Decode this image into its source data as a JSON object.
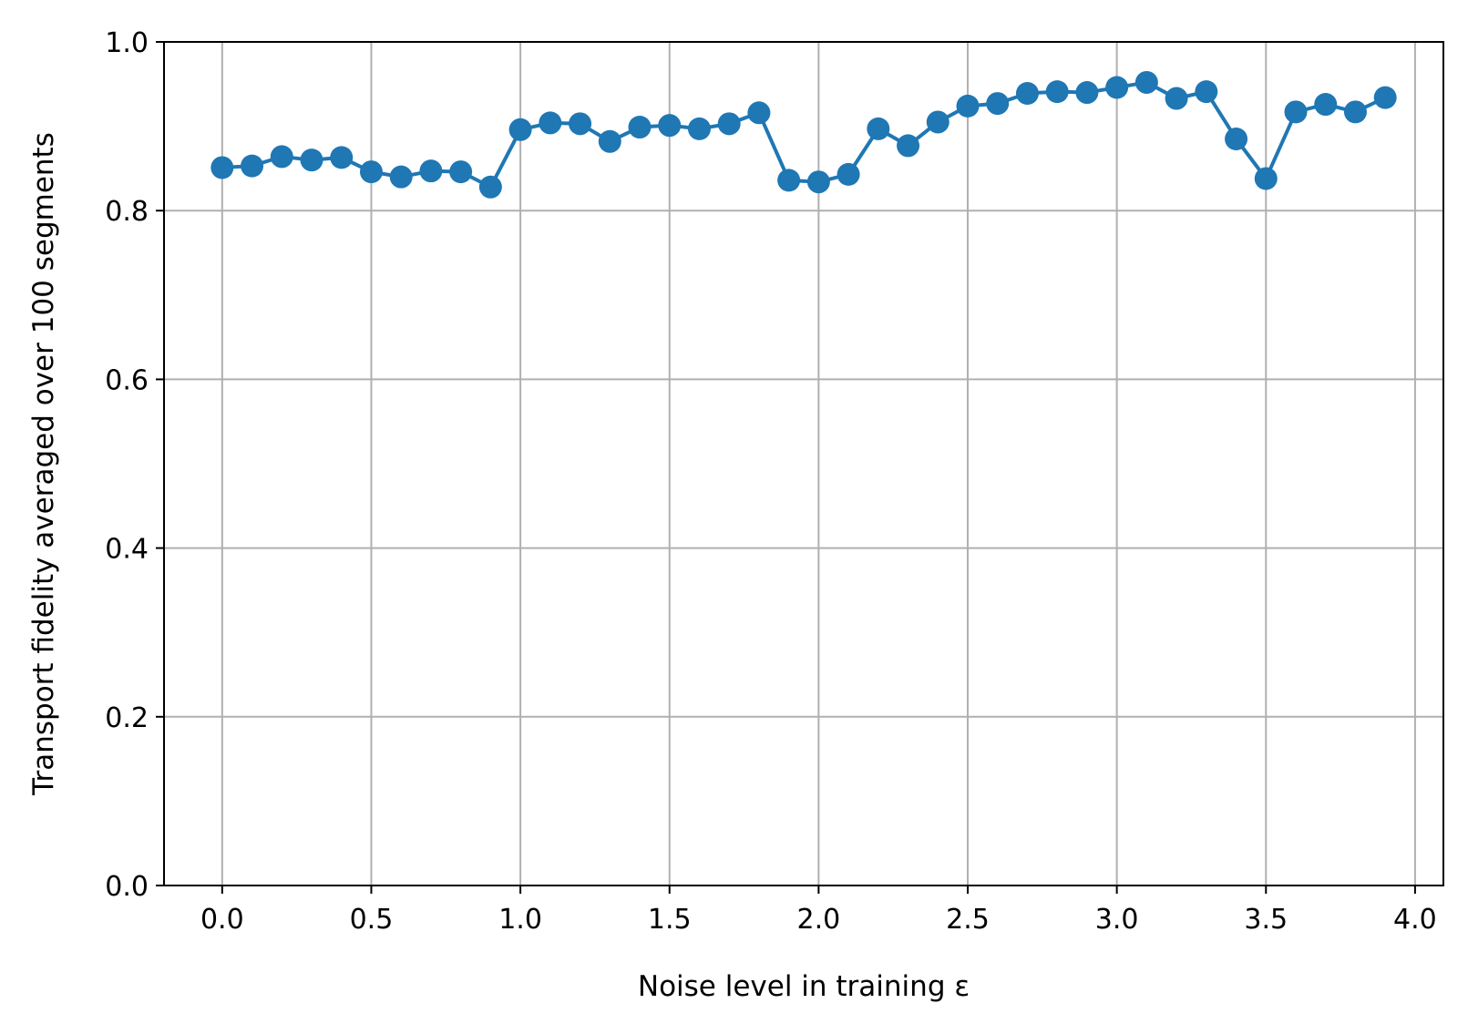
{
  "chart_data": {
    "type": "line",
    "title": "",
    "xlabel": "Noise level in training ε",
    "ylabel": "Transport fidelity averaged over 100 segments",
    "xlim": [
      -0.195,
      4.095
    ],
    "ylim": [
      0.0,
      1.0
    ],
    "x_ticks": [
      "0.0",
      "0.5",
      "1.0",
      "1.5",
      "2.0",
      "2.5",
      "3.0",
      "3.5",
      "4.0"
    ],
    "y_ticks": [
      "0.0",
      "0.2",
      "0.4",
      "0.6",
      "0.8",
      "1.0"
    ],
    "grid": true,
    "legend": "none",
    "series": [
      {
        "color": "#1f77b4",
        "marker": "circle",
        "x": [
          0.0,
          0.1,
          0.2,
          0.3,
          0.4,
          0.5,
          0.6,
          0.7,
          0.8,
          0.9,
          1.0,
          1.1,
          1.2,
          1.3,
          1.4,
          1.5,
          1.6,
          1.7,
          1.8,
          1.9,
          2.0,
          2.1,
          2.2,
          2.3,
          2.4,
          2.5,
          2.6,
          2.7,
          2.8,
          2.9,
          3.0,
          3.1,
          3.2,
          3.3,
          3.4,
          3.5,
          3.6,
          3.7,
          3.8,
          3.9
        ],
        "y": [
          0.851,
          0.853,
          0.864,
          0.86,
          0.863,
          0.846,
          0.84,
          0.847,
          0.846,
          0.828,
          0.896,
          0.904,
          0.903,
          0.882,
          0.899,
          0.901,
          0.897,
          0.903,
          0.916,
          0.836,
          0.834,
          0.843,
          0.897,
          0.877,
          0.905,
          0.924,
          0.927,
          0.939,
          0.941,
          0.94,
          0.946,
          0.952,
          0.933,
          0.941,
          0.885,
          0.838,
          0.917,
          0.926,
          0.917,
          0.934
        ]
      }
    ]
  }
}
